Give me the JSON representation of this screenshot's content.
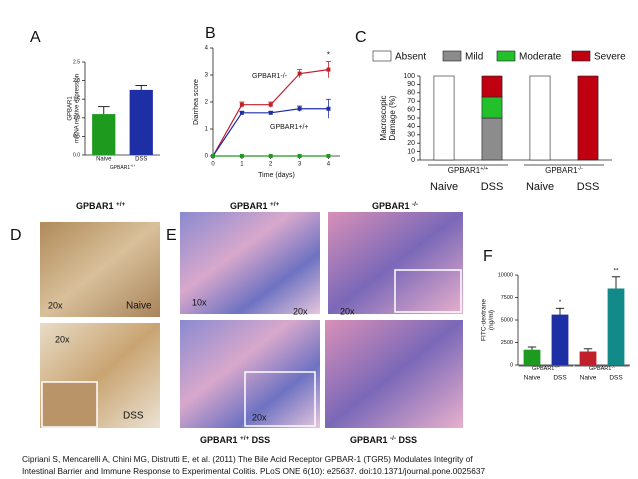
{
  "chart_data": [
    {
      "type": "bar",
      "letter": "A",
      "y_label": [
        "GPBAR1",
        "mRNA relative expression"
      ],
      "categories": [
        "Naive",
        "DSS"
      ],
      "values": [
        1.1,
        1.75
      ],
      "errors": [
        0.2,
        0.12
      ],
      "colors": [
        "#1e9a1e",
        "#1e2fa5"
      ],
      "groups": [
        {
          "name": "GPBAR1",
          "sup": "+/+"
        }
      ],
      "ylim": [
        0,
        2.5
      ],
      "yticks": [
        {
          "value": 0,
          "label": "0.0"
        },
        0.5,
        {
          "value": 1,
          "label": "1.0"
        },
        1.5,
        {
          "value": 2,
          "label": "2.0"
        },
        2.5
      ]
    },
    {
      "type": "line",
      "letter": "B",
      "x_label": "Time (days)",
      "y_label": [
        "Diarrhea score"
      ],
      "x": [
        0,
        1,
        2,
        3,
        4
      ],
      "xlim": [
        0,
        4.4
      ],
      "xticks": [
        0,
        1,
        2,
        3,
        4
      ],
      "ylim": [
        0,
        4
      ],
      "yticks": [
        0,
        1,
        2,
        3,
        4
      ],
      "series": [
        {
          "name": "GPBAR1-/-",
          "color": "#c0202a",
          "values": [
            0,
            1.9,
            1.9,
            3.05,
            3.2
          ],
          "errors": [
            0,
            0.1,
            0.1,
            0.15,
            0.3
          ]
        },
        {
          "name": "GPBAR1+/+",
          "color": "#1e2fa5",
          "values": [
            0,
            1.6,
            1.6,
            1.75,
            1.75
          ],
          "errors": [
            0,
            0.05,
            0.05,
            0.1,
            0.35
          ]
        },
        {
          "color": "#1e9a1e",
          "values": [
            0,
            0,
            0,
            0,
            0
          ]
        }
      ],
      "annotations": [
        "*"
      ]
    },
    {
      "type": "stacked_bar",
      "letter": "C",
      "y_label": [
        "Macroscopic",
        "Damage  (%)"
      ],
      "categories": [
        "Naive",
        "DSS",
        "Naive",
        "DSS"
      ],
      "groups": [
        {
          "name": "GPBAR1",
          "sup": "+/+"
        },
        {
          "name": "GPBAR1",
          "sup": "-/-"
        }
      ],
      "series": [
        {
          "name": "Absent",
          "color": "#ffffff",
          "values": [
            100,
            0,
            100,
            0
          ]
        },
        {
          "name": "Mild",
          "color": "#8c8c8c",
          "values": [
            0,
            50,
            0,
            0
          ]
        },
        {
          "name": "Moderate",
          "color": "#22c02a",
          "values": [
            0,
            25,
            0,
            0
          ]
        },
        {
          "name": "Severe",
          "color": "#c00010",
          "values": [
            0,
            25,
            0,
            100
          ]
        }
      ],
      "ylim": [
        0,
        100
      ],
      "yticks": [
        0,
        10,
        20,
        30,
        40,
        50,
        60,
        70,
        80,
        90,
        100
      ]
    },
    {
      "type": "bar",
      "letter": "F",
      "y_label": [
        "FITC-dextrane",
        "(ng/ml)"
      ],
      "categories": [
        "Naive",
        "DSS",
        "Naive",
        "DSS"
      ],
      "values": [
        1700,
        5600,
        1500,
        8500
      ],
      "errors": [
        300,
        700,
        300,
        1300
      ],
      "colors": [
        "#1e9a1e",
        "#1e2fa5",
        "#c0202a",
        "#138a8a"
      ],
      "groups": [
        {
          "name": "GPBAR1",
          "sup": "+/+"
        },
        {
          "name": "GPBAR1",
          "sup": "-/-"
        }
      ],
      "annotations": [
        "*",
        "**"
      ],
      "ylim": [
        0,
        10000
      ],
      "yticks": [
        0,
        2500,
        5000,
        7500,
        10000
      ]
    }
  ],
  "micrographs": {
    "D": {
      "letter": "D",
      "title": [
        "GPBAR1",
        "+/+"
      ],
      "labels": [
        "20x",
        "Naive",
        "20x",
        "DSS"
      ]
    },
    "E": {
      "letter": "E",
      "titles": [
        [
          "GPBAR1",
          "+/+"
        ],
        [
          "GPBAR1",
          "-/-"
        ]
      ],
      "bottom_titles": [
        [
          "GPBAR1",
          "+/+",
          "DSS"
        ],
        [
          "GPBAR1",
          "-/-",
          "DSS"
        ]
      ],
      "labels": [
        "10x",
        "20x",
        "20x",
        "20x"
      ]
    }
  },
  "citation": [
    "Cipriani S, Mencarelli A, Chini MG, Distrutti E, et al. (2011) The Bile Acid Receptor GPBAR-1 (TGR5) Modulates Integrity of",
    "Intestinal Barrier and Immune Response to Experimental Colitis. PLoS ONE 6(10): e25637. doi:10.1371/journal.pone.0025637"
  ]
}
